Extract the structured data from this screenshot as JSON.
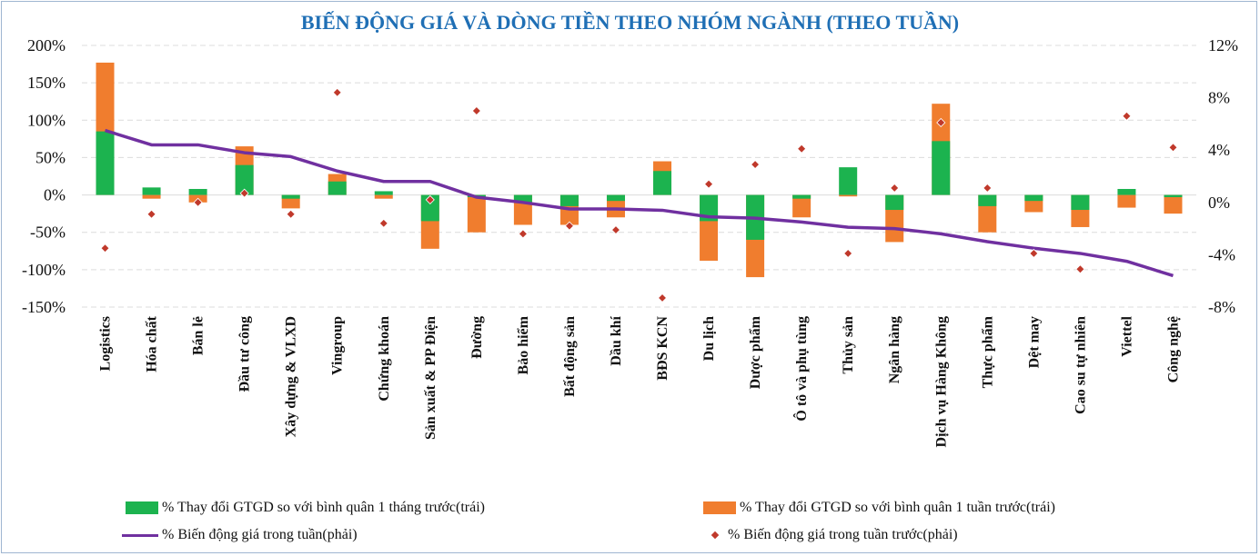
{
  "chart_data": {
    "type": "bar",
    "title": "BIẾN ĐỘNG GIÁ VÀ DÒNG TIỀN THEO NHÓM NGÀNH (THEO TUẦN)",
    "categories": [
      "Logistics",
      "Hóa chất",
      "Bán lẻ",
      "Đầu tư công",
      "Xây dựng & VLXD",
      "Vingroup",
      "Chứng khoán",
      "Sản xuất & PP Điện",
      "Đường",
      "Bảo hiểm",
      "Bất động sản",
      "Dầu khí",
      "BĐS KCN",
      "Du lịch",
      "Dược phẩm",
      "Ô tô và phụ tùng",
      "Thủy sản",
      "Ngân hàng",
      "Dịch vụ Hàng Không",
      "Thực phẩm",
      "Dệt may",
      "Cao su tự nhiên",
      "Viettel",
      "Công nghệ"
    ],
    "left_axis": {
      "ylim": [
        -150,
        200
      ],
      "ticks": [
        "200%",
        "150%",
        "100%",
        "50%",
        "0%",
        "-50%",
        "-100%",
        "-150%"
      ]
    },
    "right_axis": {
      "ylim": [
        -8,
        12
      ],
      "ticks": [
        "12%",
        "8%",
        "4%",
        "0%",
        "-4%",
        "-8%"
      ]
    },
    "series": [
      {
        "name": "% Thay đổi GTGD so với bình quân 1 tháng trước(trái)",
        "axis": "left",
        "type": "bar",
        "color": "#1cb34f",
        "values": [
          85,
          10,
          8,
          40,
          -5,
          18,
          5,
          -35,
          -3,
          -10,
          -15,
          -8,
          32,
          -35,
          -60,
          -5,
          37,
          -20,
          72,
          -15,
          -8,
          -20,
          8,
          -3
        ]
      },
      {
        "name": "% Thay đổi GTGD so với bình quân 1 tuần trước(trái)",
        "axis": "left",
        "type": "bar",
        "color": "#f07d2e",
        "values": [
          177,
          -5,
          -10,
          65,
          -18,
          28,
          -5,
          -72,
          -50,
          -40,
          -40,
          -30,
          45,
          -88,
          -110,
          -30,
          -2,
          -63,
          122,
          -50,
          -23,
          -43,
          -17,
          -25
        ]
      },
      {
        "name": "% Biến động giá trong tuần(phải)",
        "axis": "right",
        "type": "line",
        "color": "#7030a0",
        "values": [
          5.5,
          4.4,
          4.4,
          3.8,
          3.5,
          2.4,
          1.6,
          1.6,
          0.4,
          0.0,
          -0.5,
          -0.5,
          -0.6,
          -1.1,
          -1.2,
          -1.5,
          -1.9,
          -2.0,
          -2.4,
          -3.0,
          -3.5,
          -3.9,
          -4.5,
          -5.6
        ]
      },
      {
        "name": "% Biến động giá trong tuần trước(phải)",
        "axis": "right",
        "type": "scatter",
        "color": "#c0392b",
        "values": [
          -3.5,
          -0.9,
          0.0,
          0.7,
          -0.9,
          8.4,
          -1.6,
          0.2,
          7.0,
          -2.4,
          -1.8,
          -2.1,
          -7.3,
          1.4,
          2.9,
          4.1,
          -3.9,
          1.1,
          6.1,
          1.1,
          -3.9,
          -5.1,
          6.6,
          4.2
        ]
      }
    ],
    "legend_position": "bottom",
    "grid": true
  }
}
